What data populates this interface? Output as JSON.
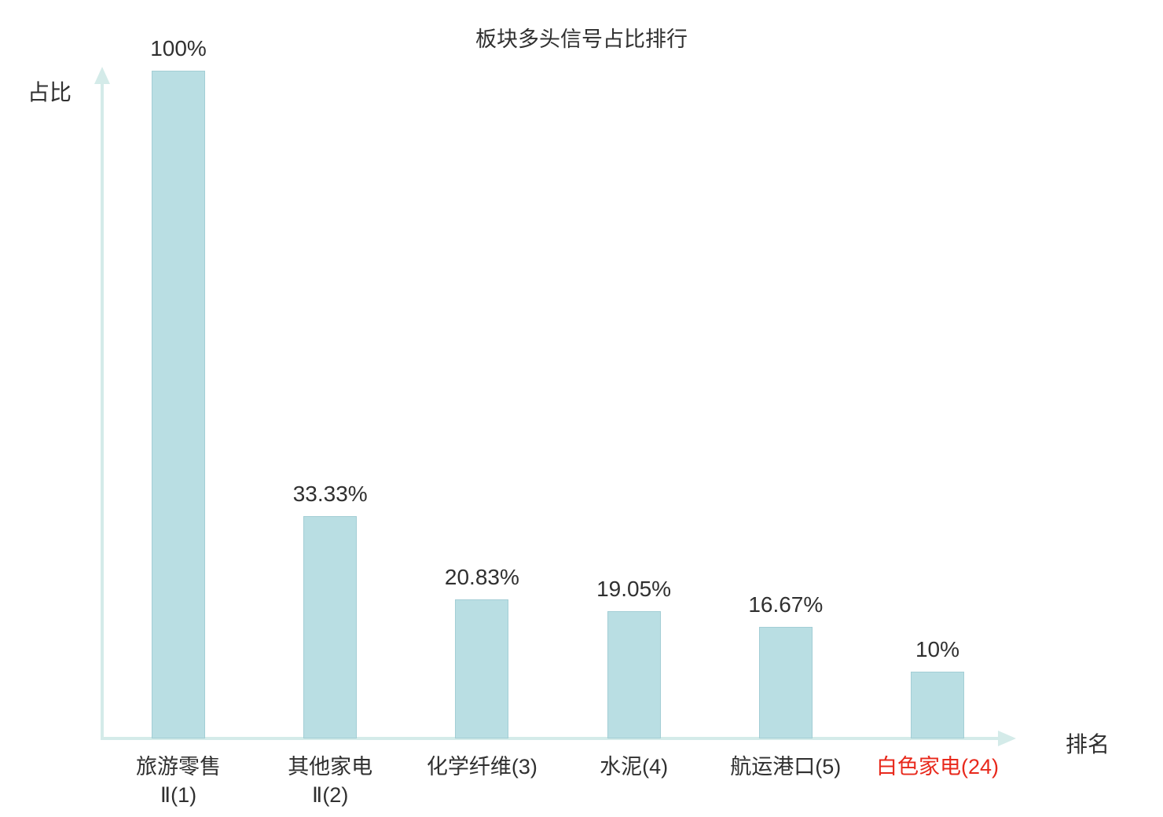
{
  "chart_data": {
    "type": "bar",
    "title": "板块多头信号占比排行",
    "xlabel": "排名",
    "ylabel": "占比",
    "ylim": [
      0,
      100
    ],
    "grid": false,
    "categories": [
      "旅游零售\nⅡ(1)",
      "其他家电\nⅡ(2)",
      "化学纤维(3)",
      "水泥(4)",
      "航运港口(5)",
      "白色家电(24)"
    ],
    "values": [
      100,
      33.33,
      20.83,
      19.05,
      16.67,
      10
    ],
    "value_labels": [
      "100%",
      "33.33%",
      "20.83%",
      "19.05%",
      "16.67%",
      "10%"
    ],
    "category_colors": [
      "#303030",
      "#303030",
      "#303030",
      "#303030",
      "#303030",
      "#e8291c"
    ],
    "bar_color": "#b9dee3",
    "bar_border_color": "#a3ced5",
    "axis_color": "#d4ebe9",
    "text_color": "#303030"
  }
}
